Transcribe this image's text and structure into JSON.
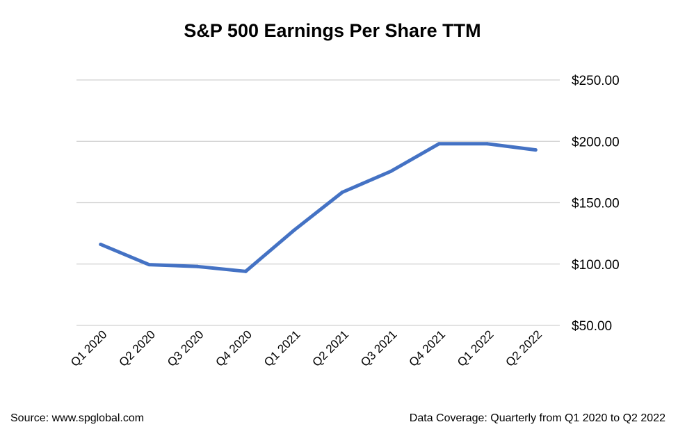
{
  "chart_data": {
    "type": "line",
    "title": "S&P 500 Earnings Per Share TTM",
    "categories": [
      "Q1 2020",
      "Q2 2020",
      "Q3 2020",
      "Q4 2020",
      "Q1 2021",
      "Q2 2021",
      "Q3 2021",
      "Q4 2021",
      "Q1 2022",
      "Q2 2022"
    ],
    "series": [
      {
        "values": [
          116,
          99.5,
          98,
          94,
          127.5,
          158.5,
          175.5,
          198,
          198,
          193
        ],
        "color": "#4472c4"
      }
    ],
    "yticks": [
      "$50.00",
      "$100.00",
      "$150.00",
      "$200.00",
      "$250.00"
    ],
    "ylim": [
      50,
      250
    ],
    "xlabel": "",
    "ylabel": "",
    "grid": true,
    "y_axis_side": "right"
  },
  "footer": {
    "source": "Source: www.spglobal.com",
    "coverage": "Data Coverage: Quarterly from Q1 2020 to Q2 2022"
  }
}
